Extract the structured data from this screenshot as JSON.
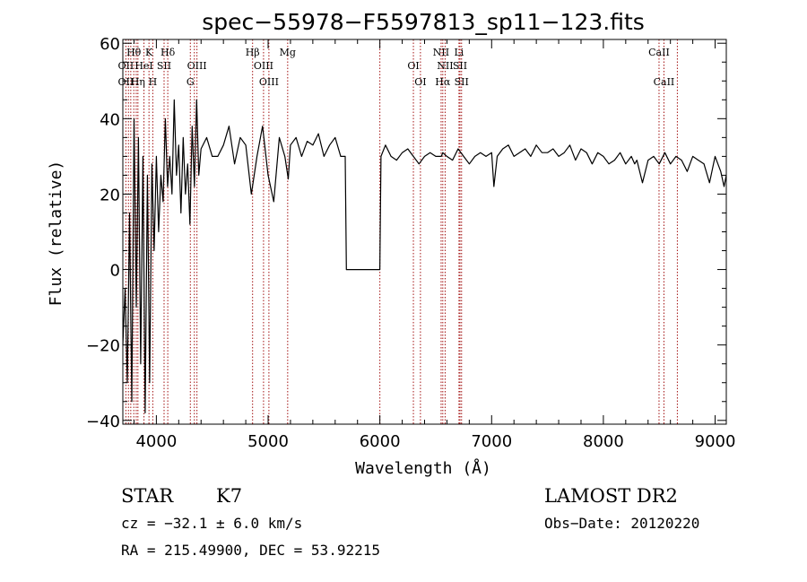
{
  "chart_data": {
    "type": "line",
    "title": "spec−55978−F5597813_sp11−123.fits",
    "xlabel": "Wavelength (Å)",
    "ylabel": "Flux (relative)",
    "xlim": [
      3700,
      9100
    ],
    "ylim": [
      -41,
      61
    ],
    "x_ticks": [
      {
        "value": 4000,
        "label": "4000"
      },
      {
        "value": 5000,
        "label": "5000"
      },
      {
        "value": 6000,
        "label": "6000"
      },
      {
        "value": 7000,
        "label": "7000"
      },
      {
        "value": 8000,
        "label": "8000"
      },
      {
        "value": 9000,
        "label": "9000"
      }
    ],
    "y_ticks": [
      {
        "value": -40,
        "label": "−40"
      },
      {
        "value": -20,
        "label": "−20"
      },
      {
        "value": 0,
        "label": "0"
      },
      {
        "value": 20,
        "label": "20"
      },
      {
        "value": 40,
        "label": "40"
      },
      {
        "value": 60,
        "label": "60"
      }
    ],
    "spectrum": {
      "x": [
        3700,
        3720,
        3740,
        3760,
        3780,
        3800,
        3820,
        3840,
        3860,
        3880,
        3900,
        3920,
        3940,
        3960,
        3980,
        4000,
        4020,
        4040,
        4060,
        4080,
        4100,
        4120,
        4140,
        4160,
        4180,
        4200,
        4220,
        4240,
        4260,
        4280,
        4300,
        4320,
        4340,
        4360,
        4380,
        4400,
        4450,
        4500,
        4550,
        4600,
        4650,
        4700,
        4750,
        4800,
        4850,
        4860,
        4900,
        4950,
        5000,
        5050,
        5100,
        5150,
        5180,
        5200,
        5250,
        5300,
        5350,
        5400,
        5450,
        5500,
        5550,
        5600,
        5650,
        5690,
        5700,
        5750,
        5800,
        5850,
        5900,
        6000,
        6010,
        6050,
        6100,
        6150,
        6200,
        6250,
        6300,
        6350,
        6400,
        6450,
        6500,
        6550,
        6563,
        6600,
        6650,
        6700,
        6750,
        6800,
        6850,
        6900,
        6950,
        7000,
        7020,
        7050,
        7100,
        7150,
        7200,
        7250,
        7300,
        7350,
        7400,
        7450,
        7500,
        7550,
        7600,
        7650,
        7700,
        7750,
        7800,
        7850,
        7900,
        7950,
        8000,
        8050,
        8100,
        8150,
        8200,
        8250,
        8280,
        8300,
        8350,
        8400,
        8450,
        8500,
        8550,
        8600,
        8650,
        8700,
        8750,
        8800,
        8850,
        8900,
        8950,
        9000,
        9050,
        9080,
        9100
      ],
      "y": [
        -20,
        -5,
        -30,
        15,
        -35,
        40,
        -10,
        35,
        -25,
        30,
        -38,
        25,
        -30,
        28,
        5,
        30,
        10,
        25,
        18,
        40,
        22,
        30,
        20,
        45,
        25,
        33,
        15,
        35,
        20,
        28,
        12,
        38,
        22,
        45,
        25,
        32,
        35,
        30,
        30,
        33,
        38,
        28,
        35,
        33,
        20,
        22,
        30,
        38,
        25,
        18,
        35,
        30,
        24,
        33,
        35,
        30,
        34,
        33,
        36,
        30,
        33,
        35,
        30,
        30,
        0,
        0,
        0,
        0,
        0,
        0,
        30,
        33,
        30,
        29,
        31,
        32,
        30,
        28,
        30,
        31,
        30,
        30,
        31,
        30,
        29,
        32,
        30,
        28,
        30,
        31,
        30,
        31,
        22,
        30,
        32,
        33,
        30,
        31,
        32,
        30,
        33,
        31,
        31,
        32,
        30,
        31,
        33,
        29,
        32,
        31,
        28,
        31,
        30,
        28,
        29,
        31,
        28,
        30,
        28,
        29,
        23,
        29,
        30,
        28,
        31,
        28,
        30,
        29,
        26,
        30,
        29,
        28,
        23,
        30,
        26,
        22,
        25
      ]
    },
    "lines": [
      {
        "label": "Hθ",
        "x": 3798,
        "row": 1
      },
      {
        "label": "OII",
        "x": 3727,
        "row": 2
      },
      {
        "label": "OII",
        "x": 3727,
        "row": 3
      },
      {
        "label": "Hη",
        "x": 3835,
        "row": 3
      },
      {
        "label": "HeI",
        "x": 3889,
        "row": 2
      },
      {
        "label": "K",
        "x": 3934,
        "row": 1
      },
      {
        "label": "SII",
        "x": 4069,
        "row": 2
      },
      {
        "label": "H",
        "x": 3968,
        "row": 3
      },
      {
        "label": "Hδ",
        "x": 4102,
        "row": 1
      },
      {
        "label": "OIII",
        "x": 4363,
        "row": 2
      },
      {
        "label": "G",
        "x": 4304,
        "row": 3
      },
      {
        "label": "Hβ",
        "x": 4861,
        "row": 1
      },
      {
        "label": "OIII",
        "x": 4959,
        "row": 2
      },
      {
        "label": "OIII",
        "x": 5007,
        "row": 3
      },
      {
        "label": "Mg",
        "x": 5175,
        "row": 1
      },
      {
        "label": "OI",
        "x": 6300,
        "row": 2
      },
      {
        "label": "OI",
        "x": 6363,
        "row": 3
      },
      {
        "label": "NII",
        "x": 6548,
        "row": 1
      },
      {
        "label": "Li",
        "x": 6708,
        "row": 1
      },
      {
        "label": "NII",
        "x": 6584,
        "row": 2
      },
      {
        "label": "SII",
        "x": 6717,
        "row": 2
      },
      {
        "label": "Hα",
        "x": 6563,
        "row": 3
      },
      {
        "label": "SII",
        "x": 6731,
        "row": 3
      },
      {
        "label": "CaII",
        "x": 8498,
        "row": 1
      },
      {
        "label": "CaII",
        "x": 8542,
        "row": 3
      }
    ],
    "extra_line_positions": [
      3750,
      3771,
      3820,
      4340,
      6000,
      8662
    ]
  },
  "info": {
    "class": "STAR",
    "subclass": "K7",
    "survey": "LAMOST DR2",
    "cz": "cz = −32.1 ± 6.0 km/s",
    "obs_date": "Obs−Date: 20120220",
    "radec": "RA = 215.49900, DEC =  53.92215"
  }
}
